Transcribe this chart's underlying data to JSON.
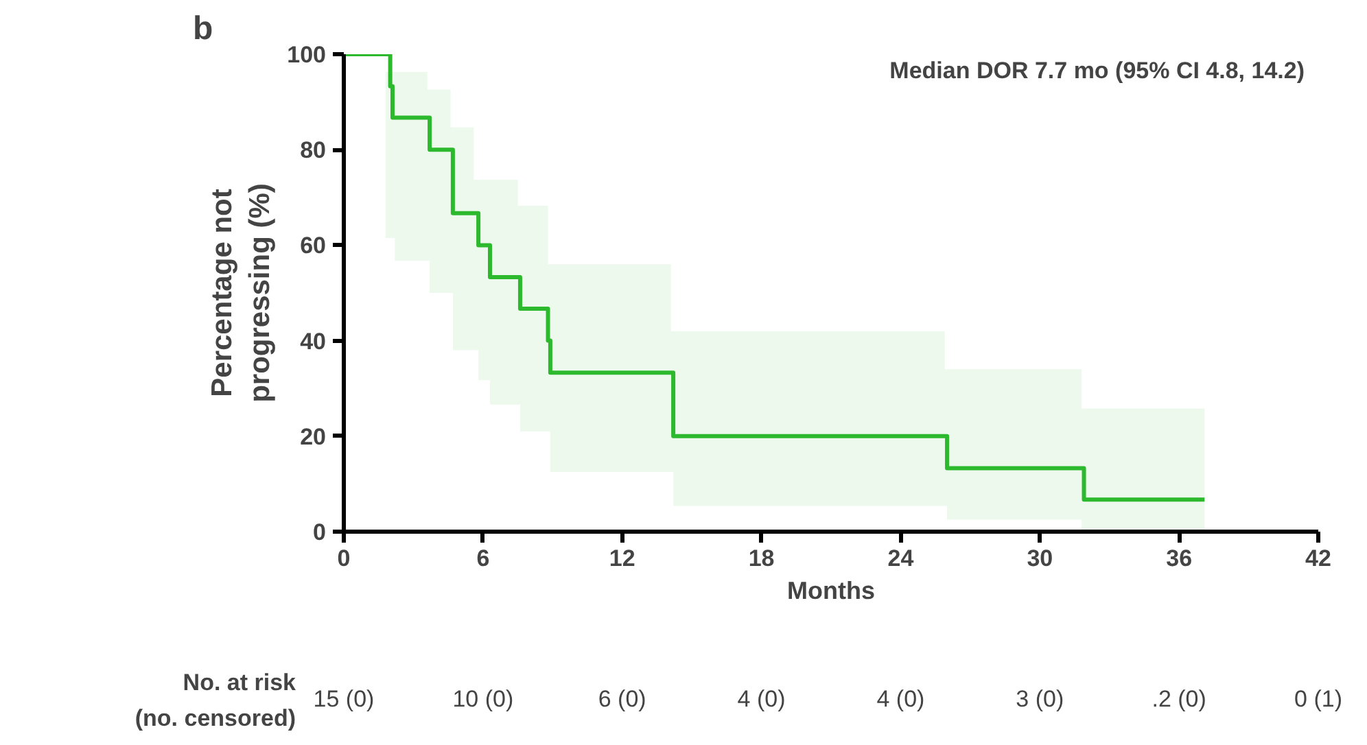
{
  "chart_data": {
    "type": "step",
    "title": "b",
    "xlabel": "Months",
    "ylabel": "Percentage not\nprogressing (%)",
    "x": [
      0,
      1.8,
      2.0,
      2.1,
      2.2,
      3.6,
      3.7,
      4.6,
      4.7,
      5.6,
      5.8,
      6.3,
      7.5,
      7.6,
      8.8,
      8.9,
      14.1,
      14.2,
      25.9,
      26.0,
      31.8,
      31.9,
      37.1
    ],
    "series": [
      {
        "color": "#2db92d",
        "values": [
          100,
          100,
          93.3,
          86.7,
          86.7,
          86.7,
          80,
          80,
          66.7,
          66.7,
          60,
          53.3,
          53.3,
          46.7,
          40,
          33.3,
          33.3,
          20,
          20,
          13.3,
          13.3,
          6.7,
          6.7
        ],
        "lower": [
          100,
          61.5,
          61.5,
          61.5,
          56.7,
          56.7,
          50,
          50,
          38,
          38,
          31.7,
          26.6,
          26.6,
          21,
          21,
          12.5,
          12.5,
          5.4,
          5.4,
          2.5,
          0,
          0,
          0
        ],
        "upper": [
          100,
          96.3,
          96.3,
          96.3,
          96.3,
          92.6,
          92.6,
          84.7,
          84.7,
          73.7,
          73.7,
          73.7,
          68.3,
          68.3,
          56,
          56,
          42,
          42,
          34,
          34,
          25.8,
          25.8,
          25.8
        ]
      }
    ],
    "xlim": [
      0,
      42
    ],
    "ylim": [
      0,
      100
    ],
    "xticks": [
      0,
      6,
      12,
      18,
      24,
      30,
      36,
      42
    ],
    "yticks": [
      0,
      20,
      40,
      60,
      80,
      100
    ],
    "grid": false,
    "marker": "none",
    "line_style": "solid",
    "annotations": [
      "Median DOR 7.7 mo (95% CI 4.8, 14.2)",
      "No. at risk",
      "(no. censored)",
      "15 (0)",
      "10 (0)",
      "6 (0)",
      "4 (0)",
      "4 (0)",
      "3 (0)",
      ".2 (0)",
      "0 (1)"
    ]
  }
}
